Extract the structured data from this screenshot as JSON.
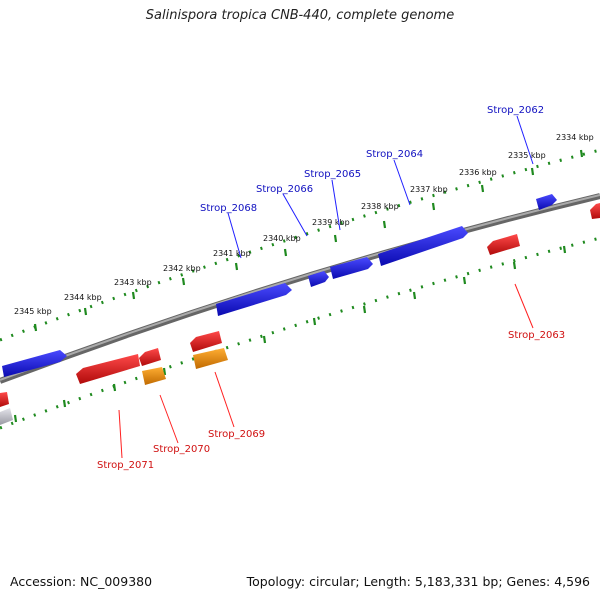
{
  "title": "Salinispora tropica CNB-440, complete genome",
  "footer": {
    "accession": "Accession: NC_009380",
    "summary": "Topology: circular; Length: 5,183,331 bp; Genes: 4,596"
  },
  "colors": {
    "forward_gene": "#1515e6",
    "reverse_gene": "#e61515",
    "rna_gene": "#e68a00",
    "other_gene": "#c8c8d0",
    "backbone": "#888888",
    "tick": "#1f8a1f",
    "forward_label": "#1010c0",
    "reverse_label": "#d01010"
  },
  "scale_labels": [
    "2334 kbp",
    "2335 kbp",
    "2336 kbp",
    "2337 kbp",
    "2338 kbp",
    "2339 kbp",
    "2340 kbp",
    "2341 kbp",
    "2342 kbp",
    "2343 kbp",
    "2344 kbp",
    "2345 kbp"
  ],
  "gene_labels_forward": [
    "Strop_2062",
    "Strop_2064",
    "Strop_2065",
    "Strop_2066",
    "Strop_2068"
  ],
  "gene_labels_reverse": [
    "Strop_2063",
    "Strop_2069",
    "Strop_2070",
    "Strop_2071"
  ]
}
